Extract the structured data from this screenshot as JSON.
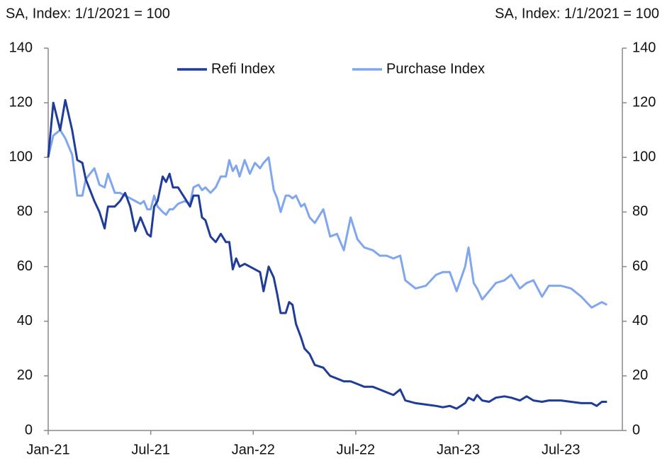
{
  "chart_data": {
    "type": "line",
    "subtitle_left": "SA, Index:  1/1/2021 = 100",
    "subtitle_right": "SA, Index:  1/1/2021 = 100",
    "x": [
      0,
      0.3,
      0.7,
      1.0,
      1.4,
      1.7,
      2.0,
      2.2,
      2.7,
      3.0,
      3.3,
      3.5,
      3.9,
      4.2,
      4.5,
      4.8,
      5.1,
      5.4,
      5.6,
      5.8,
      6.0,
      6.2,
      6.4,
      6.7,
      6.9,
      7.1,
      7.3,
      7.6,
      8.0,
      8.3,
      8.5,
      8.8,
      9.0,
      9.2,
      9.5,
      9.8,
      10.1,
      10.4,
      10.6,
      10.8,
      11.0,
      11.2,
      11.5,
      11.8,
      12.1,
      12.4,
      12.6,
      12.9,
      13.2,
      13.4,
      13.6,
      13.9,
      14.1,
      14.3,
      14.5,
      14.8,
      15.0,
      15.3,
      15.6,
      16.1,
      16.5,
      16.9,
      17.3,
      17.7,
      18.1,
      18.5,
      19.0,
      19.4,
      19.8,
      20.2,
      20.6,
      20.9,
      21.5,
      22.1,
      22.7,
      23.1,
      23.5,
      23.9,
      24.4,
      24.6,
      24.9,
      25.1,
      25.4,
      25.8,
      26.2,
      26.7,
      27.1,
      27.6,
      28.0,
      28.4,
      28.9,
      29.3,
      30.0,
      30.6,
      31.2,
      31.8,
      32.1,
      32.4,
      32.7
    ],
    "series": [
      {
        "name": "Refi Index",
        "color": "#1f3c99",
        "values": [
          100,
          120,
          110,
          121,
          110,
          99,
          98,
          92,
          84,
          80,
          74,
          82,
          82,
          84,
          87,
          82,
          73,
          78,
          75,
          72,
          71,
          82,
          84,
          93,
          91,
          94,
          89,
          89,
          85,
          82,
          86,
          86,
          78,
          77,
          71,
          69,
          72,
          69,
          69,
          59,
          63,
          60,
          61,
          60,
          59,
          58,
          51,
          60,
          56,
          50,
          43,
          43,
          47,
          46,
          39,
          34,
          30,
          28,
          24,
          23,
          20,
          19,
          18,
          18,
          17,
          16,
          16,
          15,
          14,
          13,
          15,
          11,
          10,
          9.5,
          9,
          8.5,
          9,
          8,
          10,
          12,
          11,
          13,
          11,
          10.5,
          12,
          12.5,
          12,
          11,
          12.5,
          11,
          10.5,
          11,
          11,
          10.5,
          10,
          10,
          9,
          10.5,
          10.5
        ]
      },
      {
        "name": "Purchase Index",
        "color": "#7fa6ef",
        "values": [
          100,
          108,
          110,
          107,
          101,
          86,
          86,
          92,
          96,
          90,
          89,
          94,
          87,
          87,
          86,
          85,
          84,
          83,
          84,
          81,
          81,
          86,
          82,
          80,
          79,
          81,
          81,
          83,
          84,
          83,
          89,
          90,
          88,
          89,
          87,
          89,
          93,
          93,
          99,
          95,
          97,
          93,
          99,
          94,
          98,
          96,
          98,
          100,
          88,
          85,
          80,
          86,
          86,
          85,
          86,
          82,
          83,
          78,
          76,
          81,
          71,
          72,
          66,
          78,
          70,
          67,
          66,
          64,
          64,
          63,
          64,
          55,
          52,
          53,
          57,
          58,
          58,
          51,
          60,
          67,
          54,
          52,
          48,
          51,
          54,
          55,
          57,
          52,
          54,
          55,
          49,
          53,
          53,
          52,
          49,
          45,
          46,
          47,
          46
        ]
      }
    ],
    "xlim": [
      0,
      33.6
    ],
    "xticks": [
      {
        "value": 0,
        "label": "Jan-21"
      },
      {
        "value": 6,
        "label": "Jul-21"
      },
      {
        "value": 12,
        "label": "Jan-22"
      },
      {
        "value": 18,
        "label": "Jul-22"
      },
      {
        "value": 24,
        "label": "Jan-23"
      },
      {
        "value": 30,
        "label": "Jul-23"
      }
    ],
    "ylim": [
      0,
      140
    ],
    "yticks": [
      0,
      20,
      40,
      60,
      80,
      100,
      120,
      140
    ],
    "y2lim": [
      0,
      140
    ],
    "y2ticks": [
      0,
      20,
      40,
      60,
      80,
      100,
      120,
      140
    ],
    "legend": "top",
    "grid": false
  }
}
